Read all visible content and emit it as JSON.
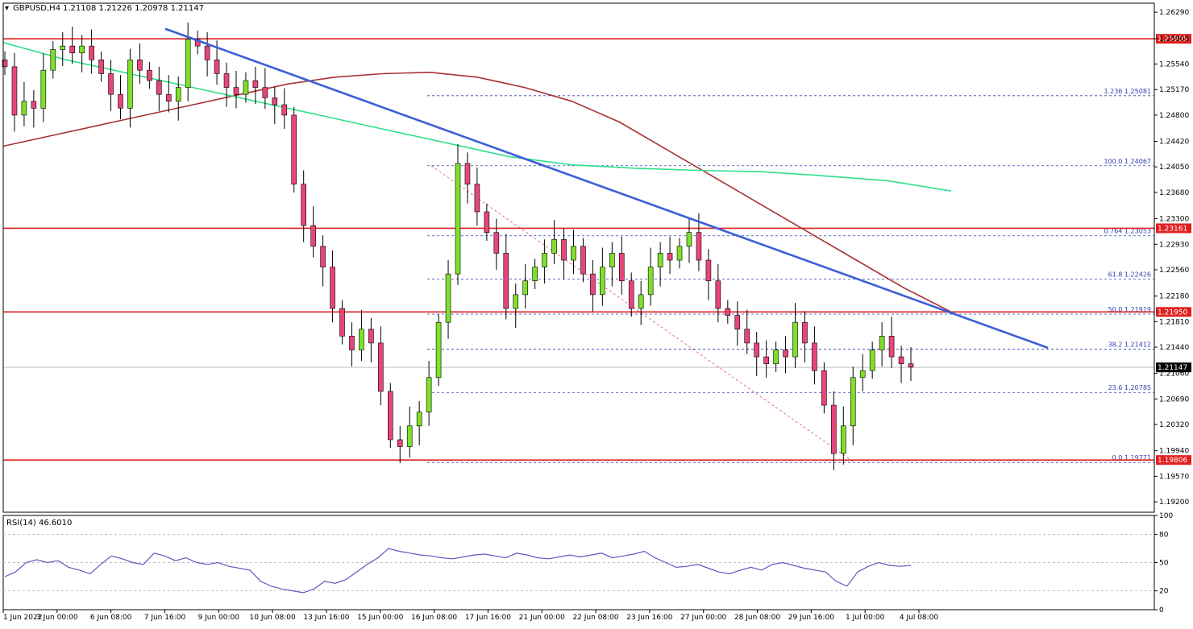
{
  "header": {
    "symbol_label": "GBPUSD,H4",
    "ohlc": "1.21108 1.21226 1.20978 1.21147"
  },
  "rsi_panel": {
    "label": "RSI(14) 46.6010"
  },
  "colors": {
    "background": "#ffffff",
    "bull_candle": "#7fe02a",
    "bear_candle": "#e8457a",
    "wick": "#000000",
    "horizontal_level": "#e02020",
    "trendline": "#3c5fd6",
    "ma_slow": "#a83232",
    "ma_fast": "#2ee08a",
    "fib_dotted": "#3040b0",
    "fib_diagonal": "#e05050",
    "rsi_line": "#7050c0",
    "current_price_line": "#c0c0c0"
  },
  "chart_data": [
    {
      "type": "candlestick",
      "title": "GBPUSD,H4",
      "ylim": [
        1.1905,
        1.2642
      ],
      "y_ticks": [
        "1.26290",
        "1.25905",
        "1.25540",
        "1.25170",
        "1.24800",
        "1.24420",
        "1.24050",
        "1.23680",
        "1.23300",
        "1.22930",
        "1.22560",
        "1.22180",
        "1.21810",
        "1.21440",
        "1.21060",
        "1.20690",
        "1.20320",
        "1.19940",
        "1.19570",
        "1.19200"
      ],
      "x_tick_labels": [
        "1 Jun 2022",
        "3 Jun 00:00",
        "6 Jun 08:00",
        "7 Jun 16:00",
        "9 Jun 00:00",
        "10 Jun 08:00",
        "13 Jun 16:00",
        "15 Jun 00:00",
        "16 Jun 08:00",
        "17 Jun 16:00",
        "21 Jun 00:00",
        "22 Jun 08:00",
        "23 Jun 16:00",
        "27 Jun 00:00",
        "28 Jun 08:00",
        "29 Jun 16:00",
        "1 Jul 00:00",
        "4 Jul 08:00"
      ],
      "candles_close": [
        1.255,
        1.248,
        1.25,
        1.249,
        1.2545,
        1.2575,
        1.258,
        1.257,
        1.258,
        1.256,
        1.254,
        1.251,
        1.249,
        1.256,
        1.2545,
        1.253,
        1.251,
        1.25,
        1.252,
        1.259,
        1.258,
        1.256,
        1.254,
        1.252,
        1.251,
        1.253,
        1.252,
        1.2505,
        1.2495,
        1.248,
        1.238,
        1.232,
        1.229,
        1.226,
        1.22,
        1.216,
        1.214,
        1.217,
        1.215,
        1.208,
        1.201,
        1.2,
        1.203,
        1.205,
        1.21,
        1.218,
        1.225,
        1.241,
        1.238,
        1.234,
        1.231,
        1.228,
        1.22,
        1.222,
        1.224,
        1.226,
        1.228,
        1.23,
        1.227,
        1.229,
        1.225,
        1.222,
        1.226,
        1.228,
        1.224,
        1.22,
        1.222,
        1.226,
        1.228,
        1.227,
        1.229,
        1.231,
        1.227,
        1.224,
        1.22,
        1.219,
        1.217,
        1.215,
        1.213,
        1.212,
        1.214,
        1.213,
        1.218,
        1.215,
        1.211,
        1.206,
        1.199,
        1.203,
        1.21,
        1.211,
        1.214,
        1.216,
        1.213,
        1.212,
        1.2115
      ],
      "support_resistance_levels": [
        {
          "label": "1.25905",
          "value": 1.25905
        },
        {
          "label": "1.23161",
          "value": 1.23161
        },
        {
          "label": "1.21950",
          "value": 1.2195
        },
        {
          "label": "1.19806",
          "value": 1.19806
        }
      ],
      "current_price": {
        "label": "1.21147",
        "value": 1.21147
      },
      "fibonacci_levels": [
        {
          "label": "1.236 1.25081",
          "value": 1.25081
        },
        {
          "label": "100.0 1.24067",
          "value": 1.24067
        },
        {
          "label": "0.764 1.23053",
          "value": 1.23053
        },
        {
          "label": "61.8 1.22426",
          "value": 1.22426
        },
        {
          "label": "50.0 1.21919",
          "value": 1.21919
        },
        {
          "label": "38.2 1.21412",
          "value": 1.21412
        },
        {
          "label": "23.6 1.20785",
          "value": 1.20785
        },
        {
          "label": "0.0 1.19771",
          "value": 1.19771
        }
      ],
      "trendline": {
        "from": [
          1.2605
        ],
        "to": [
          1.2143
        ]
      },
      "ma_slow": [
        1.2435,
        1.245,
        1.2465,
        1.248,
        1.2495,
        1.251,
        1.2525,
        1.2535,
        1.254,
        1.2542,
        1.2535,
        1.252,
        1.25,
        1.247,
        1.243,
        1.239,
        1.235,
        1.231,
        1.227,
        1.223,
        1.2195
      ],
      "ma_fast": [
        1.2585,
        1.256,
        1.254,
        1.252,
        1.25,
        1.248,
        1.246,
        1.244,
        1.242,
        1.2408,
        1.2403,
        1.24,
        1.2398,
        1.2392,
        1.2385,
        1.237
      ]
    },
    {
      "type": "line",
      "title": "RSI(14) 46.6010",
      "ylim": [
        0,
        100
      ],
      "y_ticks": [
        "100",
        "80",
        "50",
        "20",
        "0"
      ],
      "values": [
        35,
        40,
        50,
        53,
        50,
        52,
        45,
        42,
        38,
        48,
        57,
        54,
        50,
        48,
        60,
        57,
        52,
        55,
        50,
        48,
        50,
        46,
        44,
        42,
        30,
        25,
        22,
        20,
        18,
        22,
        30,
        28,
        32,
        40,
        48,
        55,
        65,
        62,
        60,
        58,
        57,
        55,
        54,
        56,
        58,
        59,
        57,
        55,
        60,
        58,
        55,
        54,
        56,
        58,
        56,
        58,
        60,
        55,
        57,
        59,
        62,
        55,
        50,
        45,
        46,
        48,
        44,
        40,
        38,
        42,
        45,
        42,
        48,
        50,
        47,
        44,
        42,
        40,
        30,
        25,
        40,
        46,
        50,
        47,
        46,
        47
      ]
    }
  ]
}
